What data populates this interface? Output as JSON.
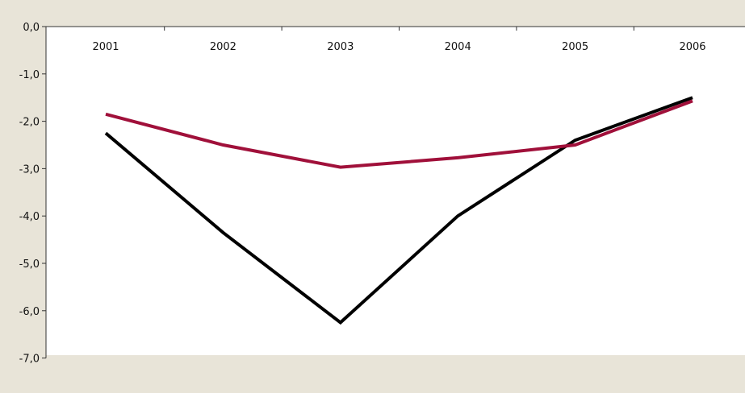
{
  "chart_data": {
    "type": "line",
    "categories": [
      "2001",
      "2002",
      "2003",
      "2004",
      "2005",
      "2006"
    ],
    "y_ticks": [
      "0,0",
      "-1,0",
      "-2,0",
      "-3,0",
      "-4,0",
      "-5,0",
      "-6,0",
      "-7,0"
    ],
    "ylim": [
      -7,
      0
    ],
    "grid": false,
    "series": [
      {
        "color": "#000000",
        "values": [
          -2.25,
          -4.35,
          -6.25,
          -4.0,
          -2.4,
          -1.5
        ]
      },
      {
        "color": "#a0103a",
        "values": [
          -1.85,
          -2.5,
          -2.97,
          -2.77,
          -2.5,
          -1.57
        ]
      }
    ]
  },
  "colors": {
    "background": "#e8e4d8",
    "plot_area": "#ffffff"
  }
}
